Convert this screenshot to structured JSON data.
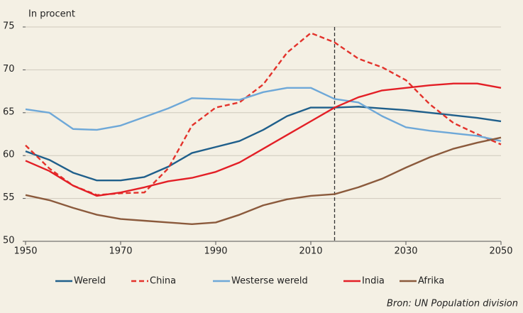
{
  "chart_data": {
    "type": "line",
    "y_label": "In procent",
    "source": "Bron: UN Population division",
    "x": [
      1950,
      1955,
      1960,
      1965,
      1970,
      1975,
      1980,
      1985,
      1990,
      1995,
      2000,
      2005,
      2010,
      2015,
      2020,
      2025,
      2030,
      2035,
      2040,
      2045,
      2050
    ],
    "series": [
      {
        "name": "Wereld",
        "color": "#1f5f8b",
        "dashed": false,
        "values": [
          60.5,
          59.5,
          58,
          57.1,
          57.1,
          57.5,
          58.7,
          60.3,
          61,
          61.7,
          63,
          64.6,
          65.6,
          65.6,
          65.7,
          65.5,
          65.3,
          65,
          64.7,
          64.4,
          64
        ]
      },
      {
        "name": "China",
        "color": "#e3322b",
        "dashed": true,
        "values": [
          61.2,
          58.5,
          56.5,
          55.4,
          55.6,
          55.7,
          58.5,
          63.5,
          65.6,
          66.2,
          68.3,
          72,
          74.3,
          73.2,
          71.3,
          70.3,
          68.8,
          66,
          63.8,
          62.5,
          61.3
        ]
      },
      {
        "name": "Westerse wereld",
        "color": "#6ea8d8",
        "dashed": false,
        "values": [
          65.4,
          65,
          63.1,
          63,
          63.5,
          64.5,
          65.5,
          66.7,
          66.6,
          66.5,
          67.4,
          67.9,
          67.9,
          66.6,
          66.2,
          64.6,
          63.3,
          62.9,
          62.6,
          62.3,
          61.7
        ]
      },
      {
        "name": "India",
        "color": "#e31f26",
        "dashed": false,
        "values": [
          59.4,
          58.2,
          56.5,
          55.3,
          55.7,
          56.3,
          57,
          57.4,
          58.1,
          59.2,
          60.8,
          62.4,
          64,
          65.6,
          66.8,
          67.6,
          67.9,
          68.2,
          68.4,
          68.4,
          67.9
        ]
      },
      {
        "name": "Afrika",
        "color": "#8b5a3c",
        "dashed": false,
        "values": [
          55.4,
          54.8,
          53.9,
          53.1,
          52.6,
          52.4,
          52.2,
          52,
          52.2,
          53.1,
          54.2,
          54.9,
          55.3,
          55.5,
          56.3,
          57.3,
          58.6,
          59.8,
          60.8,
          61.5,
          62.1
        ]
      }
    ],
    "marker_x": 2015,
    "xlim": [
      1950,
      2050
    ],
    "xticks": [
      1950,
      1970,
      1990,
      2010,
      2030,
      2050
    ],
    "ylim": [
      50,
      75
    ],
    "yticks": [
      50,
      55,
      60,
      65,
      70,
      75
    ],
    "grid": true,
    "legend": "bottom"
  }
}
